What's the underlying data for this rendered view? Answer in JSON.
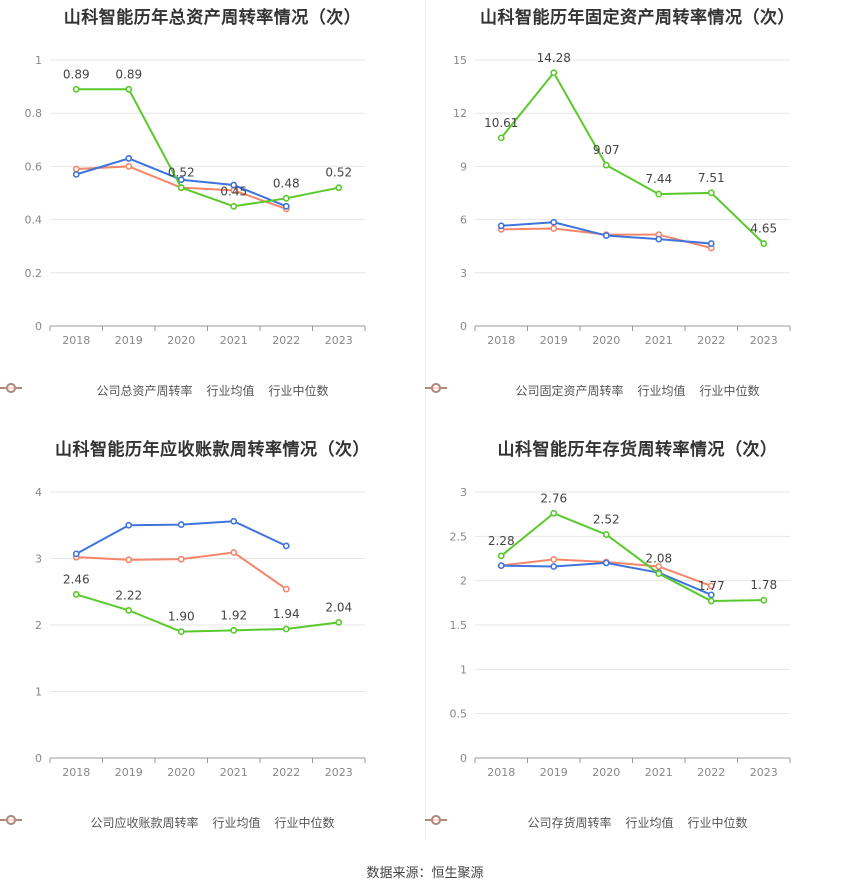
{
  "source": "数据来源：恒生聚源",
  "colors": {
    "company": "#5ac92c",
    "avg": "#3f74dc",
    "median": "#f5866a"
  },
  "chart_data": [
    {
      "type": "line",
      "title": "山科智能历年总资产周转率情况（次）",
      "x": [
        "2018",
        "2019",
        "2020",
        "2021",
        "2022",
        "2023"
      ],
      "ylim": [
        0,
        1
      ],
      "yticks": [
        "0",
        "0.2",
        "0.4",
        "0.6",
        "0.8",
        "1"
      ],
      "ytick_values": [
        0,
        0.2,
        0.4,
        0.6,
        0.8,
        1
      ],
      "series": [
        {
          "name": "公司总资产周转率",
          "values": [
            0.89,
            0.89,
            0.52,
            0.45,
            0.48,
            0.52
          ],
          "labels": [
            "0.89",
            "0.89",
            "0.52",
            "0.45",
            "0.48",
            "0.52"
          ]
        },
        {
          "name": "行业均值",
          "values": [
            0.57,
            0.63,
            0.55,
            0.53,
            0.45,
            null
          ]
        },
        {
          "name": "行业中位数",
          "values": [
            0.59,
            0.6,
            0.52,
            0.51,
            0.44,
            null
          ]
        }
      ]
    },
    {
      "type": "line",
      "title": "山科智能历年固定资产周转率情况（次）",
      "x": [
        "2018",
        "2019",
        "2020",
        "2021",
        "2022",
        "2023"
      ],
      "ylim": [
        0,
        15
      ],
      "yticks": [
        "0",
        "3",
        "6",
        "9",
        "12",
        "15"
      ],
      "ytick_values": [
        0,
        3,
        6,
        9,
        12,
        15
      ],
      "series": [
        {
          "name": "公司固定资产周转率",
          "values": [
            10.61,
            14.28,
            9.07,
            7.44,
            7.51,
            4.65
          ],
          "labels": [
            "10.61",
            "14.28",
            "9.07",
            "7.44",
            "7.51",
            "4.65"
          ]
        },
        {
          "name": "行业均值",
          "values": [
            5.65,
            5.85,
            5.1,
            4.9,
            4.65,
            null
          ]
        },
        {
          "name": "行业中位数",
          "values": [
            5.45,
            5.5,
            5.15,
            5.15,
            4.4,
            null
          ]
        }
      ]
    },
    {
      "type": "line",
      "title": "山科智能历年应收账款周转率情况（次）",
      "x": [
        "2018",
        "2019",
        "2020",
        "2021",
        "2022",
        "2023"
      ],
      "ylim": [
        0,
        4
      ],
      "yticks": [
        "0",
        "1",
        "2",
        "3",
        "4"
      ],
      "ytick_values": [
        0,
        1,
        2,
        3,
        4
      ],
      "series": [
        {
          "name": "公司应收账款周转率",
          "values": [
            2.46,
            2.22,
            1.9,
            1.92,
            1.94,
            2.04
          ],
          "labels": [
            "2.46",
            "2.22",
            "1.90",
            "1.92",
            "1.94",
            "2.04"
          ]
        },
        {
          "name": "行业均值",
          "values": [
            3.07,
            3.5,
            3.51,
            3.56,
            3.19,
            null
          ]
        },
        {
          "name": "行业中位数",
          "values": [
            3.02,
            2.98,
            2.99,
            3.09,
            2.54,
            null
          ]
        }
      ]
    },
    {
      "type": "line",
      "title": "山科智能历年存货周转率情况（次）",
      "x": [
        "2018",
        "2019",
        "2020",
        "2021",
        "2022",
        "2023"
      ],
      "ylim": [
        0,
        3
      ],
      "yticks": [
        "0",
        "0.5",
        "1",
        "1.5",
        "2",
        "2.5",
        "3"
      ],
      "ytick_values": [
        0,
        0.5,
        1,
        1.5,
        2,
        2.5,
        3
      ],
      "series": [
        {
          "name": "公司存货周转率",
          "values": [
            2.28,
            2.76,
            2.52,
            2.08,
            1.77,
            1.78
          ],
          "labels": [
            "2.28",
            "2.76",
            "2.52",
            "2.08",
            "1.77",
            "1.78"
          ]
        },
        {
          "name": "行业均值",
          "values": [
            2.17,
            2.16,
            2.2,
            2.09,
            1.84,
            null
          ]
        },
        {
          "name": "行业中位数",
          "values": [
            2.17,
            2.24,
            2.21,
            2.16,
            1.94,
            null
          ]
        }
      ]
    }
  ]
}
